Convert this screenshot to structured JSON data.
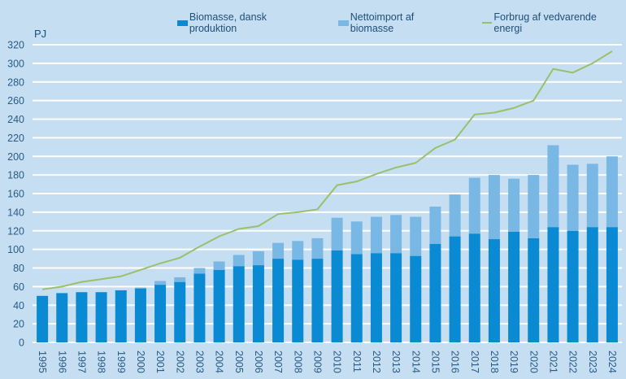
{
  "chart_data": {
    "type": "bar",
    "stacked": true,
    "title": "",
    "ylabel": "PJ",
    "xlabel": "",
    "ylim": [
      0,
      320
    ],
    "yticks": [
      0,
      20,
      40,
      60,
      80,
      100,
      120,
      140,
      160,
      180,
      200,
      220,
      240,
      260,
      280,
      300,
      320
    ],
    "grid": true,
    "legend_position": "top",
    "categories": [
      "1995",
      "1996",
      "1997",
      "1998",
      "1999",
      "2000",
      "2001",
      "2002",
      "2003",
      "2004",
      "2005",
      "2006",
      "2007",
      "2008",
      "2009",
      "2010",
      "2011",
      "2012",
      "2013",
      "2014",
      "2015",
      "2016",
      "2017",
      "2018",
      "2019",
      "2020",
      "2021",
      "2022",
      "2023",
      "2024"
    ],
    "series": [
      {
        "name": "Biomasse, dansk produktion",
        "type": "bar",
        "color": "#0a8ad2",
        "values": [
          50,
          53,
          54,
          54,
          56,
          58,
          62,
          65,
          74,
          78,
          82,
          83,
          90,
          89,
          90,
          99,
          95,
          96,
          96,
          93,
          106,
          114,
          117,
          111,
          119,
          112,
          124,
          120,
          124,
          124
        ]
      },
      {
        "name": "Nettoimport af biomasse",
        "type": "bar",
        "color": "#79b7e5",
        "values": [
          0,
          0,
          0,
          0,
          0,
          1,
          4,
          5,
          6,
          9,
          12,
          15,
          17,
          20,
          22,
          35,
          35,
          39,
          41,
          42,
          40,
          45,
          60,
          69,
          57,
          68,
          88,
          71,
          68,
          76
        ]
      },
      {
        "name": "Forbrug af vedvarende energi",
        "type": "line",
        "color": "#9bc06a",
        "values": [
          57,
          60,
          65,
          68,
          71,
          78,
          85,
          91,
          103,
          114,
          122,
          125,
          138,
          140,
          143,
          169,
          173,
          181,
          188,
          193,
          209,
          218,
          245,
          247,
          252,
          260,
          294,
          290,
          300,
          313
        ]
      }
    ]
  }
}
